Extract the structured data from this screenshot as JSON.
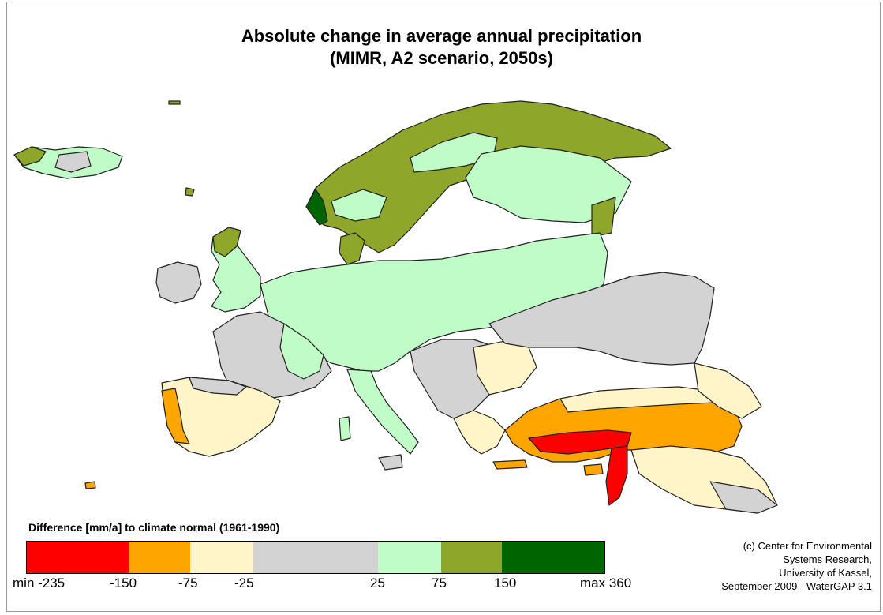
{
  "title": {
    "line1": "Absolute change in average annual precipitation",
    "line2": "(MIMR, A2 scenario, 2050s)"
  },
  "legend": {
    "title": "Difference [mm/a] to climate normal (1961-1990)",
    "classes": [
      {
        "label": "min -235",
        "color": "#ff0000"
      },
      {
        "label": "-150",
        "color": "#ffa500"
      },
      {
        "label": "-75",
        "color": "#fff5c8"
      },
      {
        "label": "-25",
        "color": "#d3d3d3"
      },
      {
        "label": "25",
        "color": "#c0fcc8"
      },
      {
        "label": "75",
        "color": "#8ea62a"
      },
      {
        "label": "150",
        "color": "#006400"
      },
      {
        "label": "max 360",
        "color": ""
      }
    ]
  },
  "credit": {
    "lines": [
      "(c) Center for Environmental",
      "Systems Research,",
      "University of Kassel,",
      "September 2009 - WaterGAP 3.1"
    ]
  }
}
